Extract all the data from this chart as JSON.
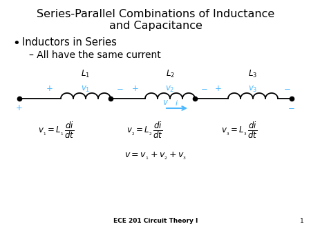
{
  "title_line1": "Series-Parallel Combinations of Inductance",
  "title_line2": "and Capacitance",
  "bullet": "Inductors in Series",
  "sub_bullet": "All have the same current",
  "footer": "ECE 201 Circuit Theory I",
  "page_num": "1",
  "bg_color": "#ffffff",
  "text_color": "#000000",
  "cyan_color": "#4db8ff",
  "title_fontsize": 11.5,
  "body_fontsize": 10.5,
  "sub_fontsize": 10,
  "eq_fontsize": 8.5,
  "footer_fontsize": 6.5
}
